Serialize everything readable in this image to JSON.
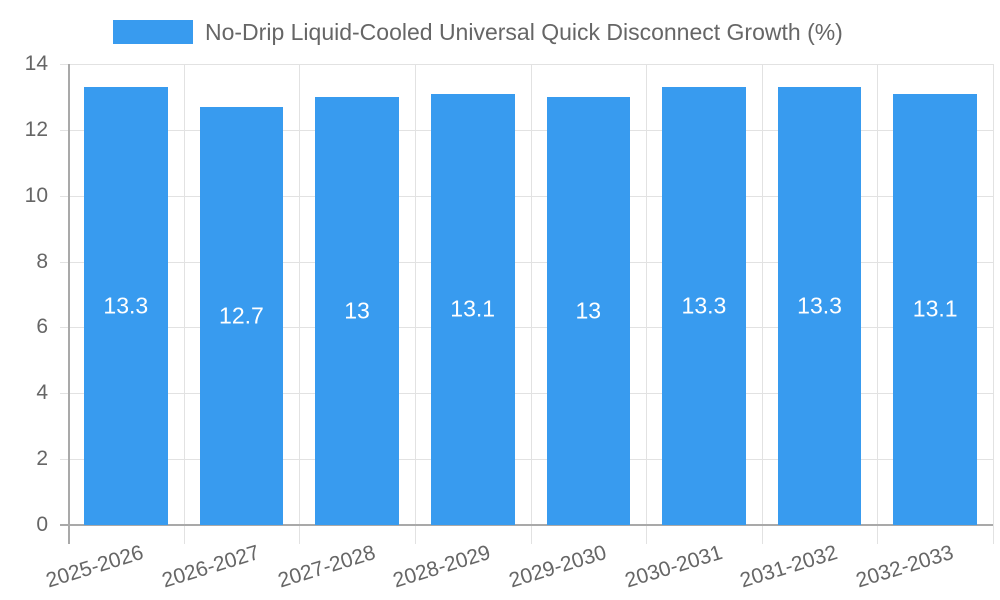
{
  "chart_data": {
    "type": "bar",
    "title": "",
    "legend": {
      "position": "top",
      "entries": [
        {
          "label": "No-Drip Liquid-Cooled Universal Quick Disconnect Growth (%)",
          "color": "#389bef"
        }
      ]
    },
    "categories": [
      "2025-2026",
      "2026-2027",
      "2027-2028",
      "2028-2029",
      "2029-2030",
      "2030-2031",
      "2031-2032",
      "2032-2033"
    ],
    "series": [
      {
        "name": "No-Drip Liquid-Cooled Universal Quick Disconnect Growth (%)",
        "values": [
          13.3,
          12.7,
          13,
          13.1,
          13,
          13.3,
          13.3,
          13.1
        ],
        "labels": [
          "13.3",
          "12.7",
          "13",
          "13.1",
          "13",
          "13.3",
          "13.3",
          "13.1"
        ],
        "color": "#389bef"
      }
    ],
    "xlabel": "",
    "ylabel": "",
    "ylim": [
      0,
      14
    ],
    "yticks": [
      "0",
      "2",
      "4",
      "6",
      "8",
      "10",
      "12",
      "14"
    ],
    "grid": true,
    "data_labels": "centered-inside"
  }
}
